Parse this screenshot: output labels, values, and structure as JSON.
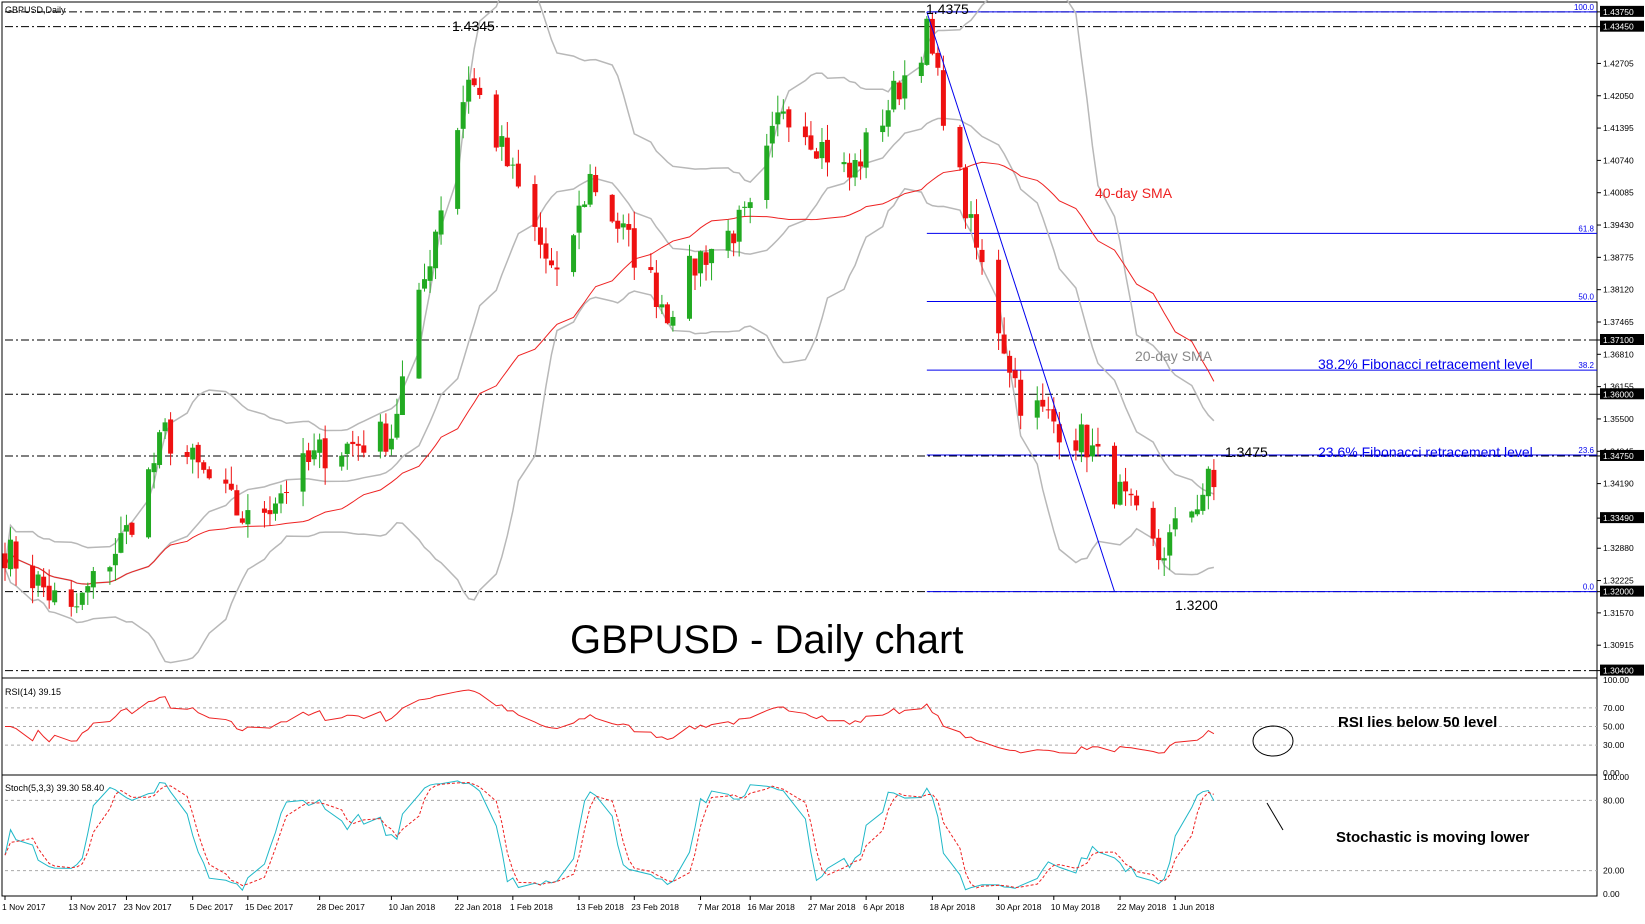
{
  "main_panel": {
    "symbol_label": "GBPUSD,Daily",
    "big_title": "GBPUSD - Daily chart",
    "annotations": {
      "sma40_label": "40-day SMA",
      "sma20_label": "20-day SMA",
      "fib382_label": "38.2% Fibonacci retracement level",
      "fib236_label": "23.6% Fibonacci retracement level",
      "high1_label": "1.4345",
      "high2_label": "1.4375",
      "low_label": "1.3200",
      "swing_label": "1.3475"
    }
  },
  "rsi_panel": {
    "header": "RSI(14) 39.15",
    "note": "RSI lies below 50 level",
    "ticks": [
      "100.00",
      "70.00",
      "50.00",
      "30.00",
      "0.00"
    ]
  },
  "stoch_panel": {
    "header": "Stoch(5,3,3) 39.30 58.40",
    "note": "Stochastic is moving lower",
    "ticks": [
      "100.00",
      "80.00",
      "20.00",
      "0.00"
    ]
  },
  "colors": {
    "bull": "#22aa22",
    "bear": "#ee1111",
    "sma40": "#ee2222",
    "bands": "#b8b8b8",
    "fib": "#0000ee",
    "rsi": "#ee2222",
    "stoch_main": "#20b8c8",
    "stoch_signal": "#ee2222"
  },
  "chart_data": {
    "type": "candlestick",
    "title": "GBPUSD - Daily chart",
    "price_ylim": [
      1.3025,
      1.4395
    ],
    "price_ticks": [
      "1.43750",
      "1.43450",
      "1.42705",
      "1.42050",
      "1.41395",
      "1.40740",
      "1.40085",
      "1.39430",
      "1.38775",
      "1.38120",
      "1.37465",
      "1.37100",
      "1.36810",
      "1.36155",
      "1.36000",
      "1.35500",
      "1.34845",
      "1.34750",
      "1.34190",
      "1.33490",
      "1.32880",
      "1.32225",
      "1.32000",
      "1.31570",
      "1.30915",
      "1.30400"
    ],
    "highlighted_price_ticks": [
      "1.43750",
      "1.43450",
      "1.37100",
      "1.36000",
      "1.34750",
      "1.33490",
      "1.32000",
      "1.30400"
    ],
    "x_labels": [
      "1 Nov 2017",
      "13 Nov 2017",
      "23 Nov 2017",
      "5 Dec 2017",
      "15 Dec 2017",
      "28 Dec 2017",
      "10 Jan 2018",
      "22 Jan 2018",
      "1 Feb 2018",
      "13 Feb 2018",
      "23 Feb 2018",
      "7 Mar 2018",
      "16 Mar 2018",
      "27 Mar 2018",
      "6 Apr 2018",
      "18 Apr 2018",
      "30 Apr 2018",
      "10 May 2018",
      "22 May 2018",
      "1 Jun 2018"
    ],
    "horizontal_levels": [
      1.4375,
      1.4345,
      1.371,
      1.36,
      1.3475,
      1.32,
      1.304
    ],
    "fibonacci": {
      "high": 1.4375,
      "low": 1.32,
      "levels": [
        {
          "label": "100.0",
          "price": 1.4375
        },
        {
          "label": "61.8",
          "price": 1.3926
        },
        {
          "label": "50.0",
          "price": 1.3788
        },
        {
          "label": "38.2",
          "price": 1.3649
        },
        {
          "label": "23.6",
          "price": 1.3477
        },
        {
          "label": "0.0",
          "price": 1.32
        }
      ]
    },
    "trendline": {
      "from": {
        "date": "17 Apr 2018",
        "price": 1.4375
      },
      "to": {
        "date": "21 May 2018",
        "price": 1.32
      }
    },
    "anchor_points": [
      {
        "date": "1 Nov 2017",
        "price": 1.3285
      },
      {
        "date": "13 Nov 2017",
        "price": 1.315
      },
      {
        "date": "23 Nov 2017",
        "price": 1.332
      },
      {
        "date": "30 Nov 2017",
        "price": 1.352
      },
      {
        "date": "15 Dec 2017",
        "price": 1.334
      },
      {
        "date": "28 Dec 2017",
        "price": 1.348
      },
      {
        "date": "10 Jan 2018",
        "price": 1.352
      },
      {
        "date": "15 Jan 2018",
        "price": 1.378
      },
      {
        "date": "24 Jan 2018",
        "price": 1.425
      },
      {
        "date": "29 Jan 2018",
        "price": 1.412
      },
      {
        "date": "9 Feb 2018",
        "price": 1.382
      },
      {
        "date": "15 Feb 2018",
        "price": 1.404
      },
      {
        "date": "1 Mar 2018",
        "price": 1.377
      },
      {
        "date": "7 Mar 2018",
        "price": 1.388
      },
      {
        "date": "16 Mar 2018",
        "price": 1.396
      },
      {
        "date": "22 Mar 2018",
        "price": 1.419
      },
      {
        "date": "3 Apr 2018",
        "price": 1.404
      },
      {
        "date": "17 Apr 2018",
        "price": 1.433
      },
      {
        "date": "25 Apr 2018",
        "price": 1.393
      },
      {
        "date": "4 May 2018",
        "price": 1.359
      },
      {
        "date": "16 May 2018",
        "price": 1.35
      },
      {
        "date": "29 May 2018",
        "price": 1.327
      },
      {
        "date": "7 Jun 2018",
        "price": 1.342
      },
      {
        "date": "11 Jun 2018",
        "price": 1.337
      }
    ],
    "indicators": [
      "20-day SMA",
      "40-day SMA",
      "Bollinger Bands",
      "RSI(14)",
      "Stoch(5,3,3)"
    ]
  }
}
